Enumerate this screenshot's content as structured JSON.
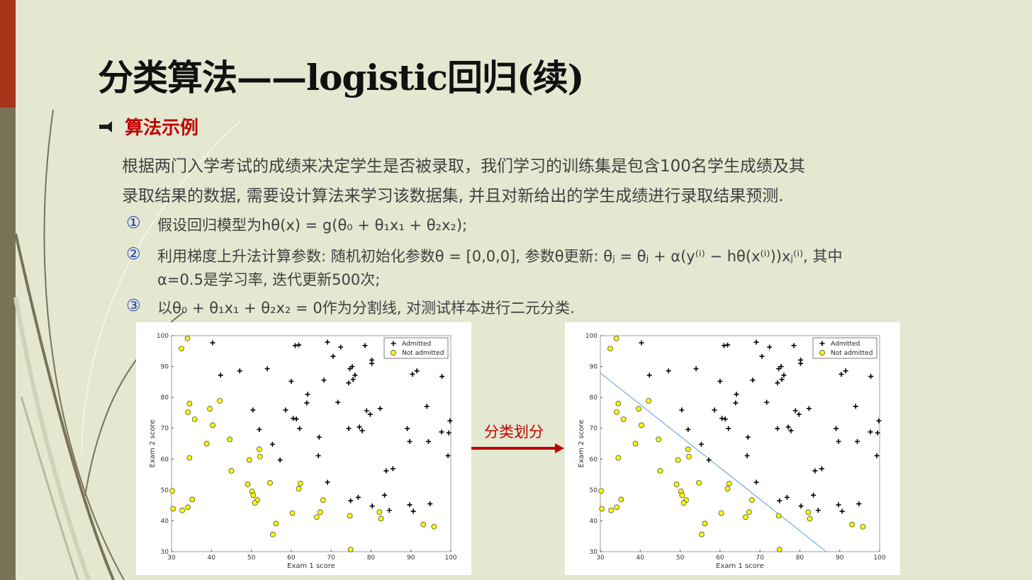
{
  "slide": {
    "title": "分类算法——logistic回归(续)",
    "bullet": "算法示例",
    "paragraph": [
      "根据两门入学考试的成绩来决定学生是否被录取，我们学习的训练集是包含100名学生成绩及其",
      "录取结果的数据, 需要设计算法来学习该数据集, 并且对新给出的学生成绩进行录取结果预测."
    ],
    "items": [
      {
        "marker": "①",
        "lines": [
          "假设回归模型为hθ(x) = g(θ₀ + θ₁x₁ + θ₂x₂);"
        ]
      },
      {
        "marker": "②",
        "lines": [
          "利用梯度上升法计算参数: 随机初始化参数θ = [0,0,0], 参数θ更新: θⱼ = θⱼ + α(y⁽ⁱ⁾ − hθ(x⁽ⁱ⁾))xⱼ⁽ⁱ⁾, 其中",
          "α=0.5是学习率, 迭代更新500次;"
        ]
      },
      {
        "marker": "③",
        "lines": [
          "以θ₀ + θ₁x₁ + θ₂x₂ = 0作为分割线, 对测试样本进行二元分类."
        ]
      }
    ],
    "arrow_label": "分类划分"
  },
  "chart_data": [
    {
      "type": "scatter",
      "xlabel": "Exam 1 score",
      "ylabel": "Exam 2 score",
      "xlim": [
        30,
        100
      ],
      "ylim": [
        30,
        100
      ],
      "xticks": [
        30,
        40,
        50,
        60,
        70,
        80,
        90,
        100
      ],
      "yticks": [
        30,
        40,
        50,
        60,
        70,
        80,
        90,
        100
      ],
      "legend": "upper right",
      "series": [
        {
          "name": "Admitted",
          "marker": "plus",
          "color": "#000000",
          "x": [
            40.3,
            42.3,
            47.1,
            54.0,
            50.4,
            52.0,
            55.3,
            57.2,
            58.6,
            60.0,
            60.5,
            61.3,
            62.1,
            61.0,
            61.9,
            64.1,
            63.9,
            67.0,
            66.8,
            68.2,
            69.1,
            70.5,
            72.4,
            71.7,
            74.4,
            74.4,
            74.7,
            75.3,
            75.5,
            76.0,
            77.1,
            77.8,
            78.5,
            78.9,
            79.8,
            80.2,
            80.2,
            82.3,
            69.1,
            74.9,
            76.8,
            80.3,
            83.4,
            83.8,
            85.5,
            84.6,
            89.1,
            89.7,
            90.4,
            91.5,
            89.7,
            90.6,
            94.0,
            94.4,
            94.8,
            97.8,
            97.7,
            99.5,
            99.8,
            99.3
          ],
          "y": [
            97.7,
            87.2,
            88.6,
            89.3,
            75.9,
            69.6,
            64.8,
            59.7,
            75.9,
            85.2,
            73.2,
            73.0,
            69.9,
            96.8,
            97.0,
            81.0,
            78.2,
            67.1,
            61.1,
            85.6,
            97.9,
            93.3,
            96.3,
            78.4,
            69.9,
            84.7,
            89.3,
            90.0,
            85.8,
            87.2,
            70.4,
            69.2,
            96.8,
            75.7,
            74.5,
            92.1,
            91.0,
            76.4,
            52.5,
            46.5,
            47.6,
            44.8,
            48.3,
            56.2,
            56.9,
            43.4,
            69.9,
            65.7,
            87.5,
            88.6,
            45.2,
            43.1,
            77.1,
            65.7,
            45.5,
            86.8,
            68.8,
            68.5,
            72.4,
            61.1
          ]
        },
        {
          "name": "Not admitted",
          "marker": "circle",
          "color": "#ffff00",
          "x": [
            34.0,
            32.5,
            30.2,
            30.4,
            32.7,
            34.1,
            35.2,
            34.5,
            34.1,
            35.8,
            34.5,
            39.6,
            40.3,
            42.1,
            38.8,
            44.6,
            45.0,
            49.1,
            50.2,
            50.5,
            51.5,
            50.9,
            49.5,
            52.0,
            52.2,
            54.7,
            56.2,
            55.4,
            60.3,
            61.9,
            62.3,
            66.4,
            67.3,
            68.0,
            74.7,
            74.9,
            82.1,
            82.5,
            93.1,
            95.8
          ],
          "y": [
            99.1,
            95.8,
            49.7,
            43.9,
            43.4,
            44.4,
            46.9,
            78.0,
            75.2,
            72.9,
            60.4,
            76.3,
            71.0,
            78.9,
            65.0,
            66.4,
            56.2,
            51.8,
            49.5,
            48.3,
            46.7,
            45.8,
            59.7,
            63.2,
            60.8,
            52.3,
            39.1,
            35.6,
            42.5,
            50.4,
            52.1,
            41.2,
            42.8,
            46.7,
            41.6,
            30.7,
            42.8,
            40.7,
            38.8,
            38.1
          ]
        }
      ]
    },
    {
      "type": "scatter",
      "xlabel": "Exam 1 score",
      "ylabel": "Exam 2 score",
      "xlim": [
        30,
        100
      ],
      "ylim": [
        30,
        100
      ],
      "xticks": [
        30,
        40,
        50,
        60,
        70,
        80,
        90,
        100
      ],
      "yticks": [
        30,
        40,
        50,
        60,
        70,
        80,
        90,
        100
      ],
      "legend": "upper right",
      "series": [
        {
          "name": "Admitted",
          "marker": "plus",
          "color": "#000000",
          "x": [
            40.3,
            42.3,
            47.1,
            54.0,
            50.4,
            52.0,
            55.3,
            57.2,
            58.6,
            60.0,
            60.5,
            61.3,
            62.1,
            61.0,
            61.9,
            64.1,
            63.9,
            67.0,
            66.8,
            68.2,
            69.1,
            70.5,
            72.4,
            71.7,
            74.4,
            74.4,
            74.7,
            75.3,
            75.5,
            76.0,
            77.1,
            77.8,
            78.5,
            78.9,
            79.8,
            80.2,
            80.2,
            82.3,
            69.1,
            74.9,
            76.8,
            80.3,
            83.4,
            83.8,
            85.5,
            84.6,
            89.1,
            89.7,
            90.4,
            91.5,
            89.7,
            90.6,
            94.0,
            94.4,
            94.8,
            97.8,
            97.7,
            99.5,
            99.8,
            99.3
          ],
          "y": [
            97.7,
            87.2,
            88.6,
            89.3,
            75.9,
            69.6,
            64.8,
            59.7,
            75.9,
            85.2,
            73.2,
            73.0,
            69.9,
            96.8,
            97.0,
            81.0,
            78.2,
            67.1,
            61.1,
            85.6,
            97.9,
            93.3,
            96.3,
            78.4,
            69.9,
            84.7,
            89.3,
            90.0,
            85.8,
            87.2,
            70.4,
            69.2,
            96.8,
            75.7,
            74.5,
            92.1,
            91.0,
            76.4,
            52.5,
            46.5,
            47.6,
            44.8,
            48.3,
            56.2,
            56.9,
            43.4,
            69.9,
            65.7,
            87.5,
            88.6,
            45.2,
            43.1,
            77.1,
            65.7,
            45.5,
            86.8,
            68.8,
            68.5,
            72.4,
            61.1
          ]
        },
        {
          "name": "Not admitted",
          "marker": "circle",
          "color": "#ffff00",
          "x": [
            34.0,
            32.5,
            30.2,
            30.4,
            32.7,
            34.1,
            35.2,
            34.5,
            34.1,
            35.8,
            34.5,
            39.6,
            40.3,
            42.1,
            38.8,
            44.6,
            45.0,
            49.1,
            50.2,
            50.5,
            51.5,
            50.9,
            49.5,
            52.0,
            52.2,
            54.7,
            56.2,
            55.4,
            60.3,
            61.9,
            62.3,
            66.4,
            67.3,
            68.0,
            74.7,
            74.9,
            82.1,
            82.5,
            93.1,
            95.8
          ],
          "y": [
            99.1,
            95.8,
            49.7,
            43.9,
            43.4,
            44.4,
            46.9,
            78.0,
            75.2,
            72.9,
            60.4,
            76.3,
            71.0,
            78.9,
            65.0,
            66.4,
            56.2,
            51.8,
            49.5,
            48.3,
            46.7,
            45.8,
            59.7,
            63.2,
            60.8,
            52.3,
            39.1,
            35.6,
            42.5,
            50.4,
            52.1,
            41.2,
            42.8,
            46.7,
            41.6,
            30.7,
            42.8,
            40.7,
            38.8,
            38.1
          ]
        }
      ],
      "decision_line": {
        "color": "#5b9bd5",
        "x": [
          30,
          86.6
        ],
        "y": [
          87.9,
          30
        ]
      }
    }
  ]
}
